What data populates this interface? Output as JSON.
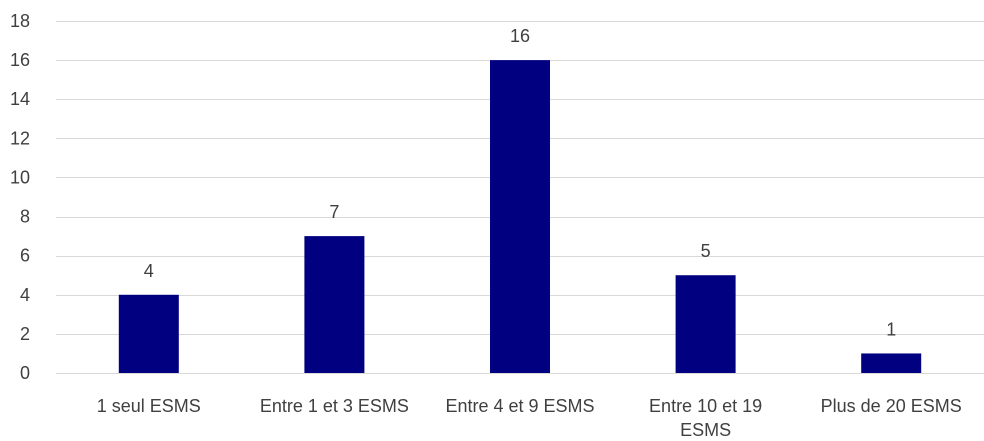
{
  "chart_data": {
    "type": "bar",
    "categories": [
      [
        "1 seul ESMS"
      ],
      [
        "Entre 1 et 3 ESMS"
      ],
      [
        "Entre 4 et 9 ESMS"
      ],
      [
        "Entre 10 et 19",
        "ESMS"
      ],
      [
        "Plus de 20 ESMS"
      ]
    ],
    "values": [
      4,
      7,
      16,
      5,
      1
    ],
    "data_labels": [
      "4",
      "7",
      "16",
      "5",
      "1"
    ],
    "ylim": [
      0,
      18
    ],
    "yticks": [
      "0",
      "2",
      "4",
      "6",
      "8",
      "10",
      "12",
      "14",
      "16",
      "18"
    ],
    "grid": true,
    "legend": false,
    "bar_color": "#000080",
    "grid_color": "#d9d9d9",
    "text_color": "#404040"
  }
}
